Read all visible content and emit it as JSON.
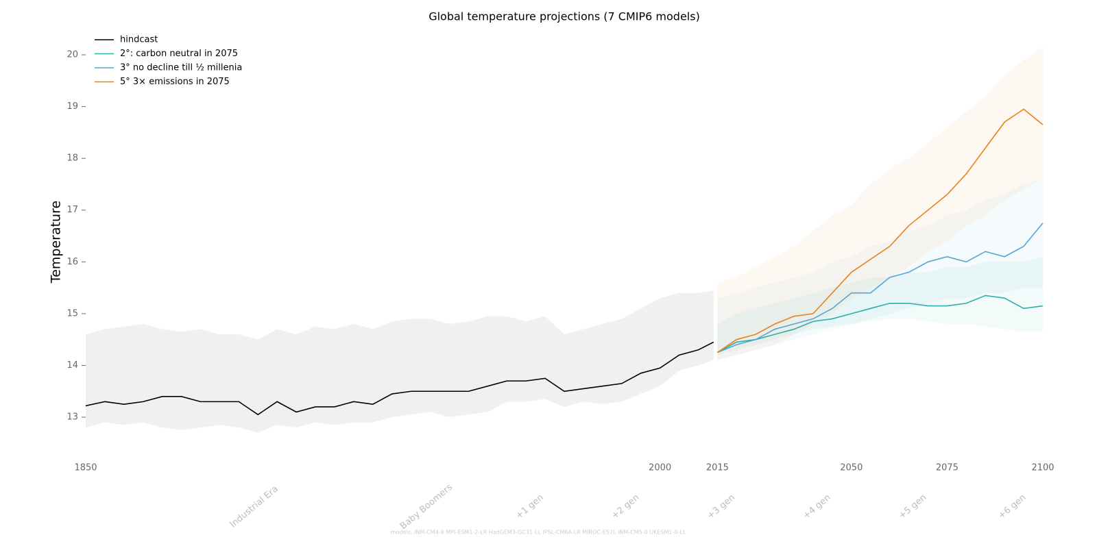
{
  "chart_data": {
    "type": "line",
    "title": "Global temperature projections (7 CMIP6 models)",
    "y_label": "Temperature",
    "footnote": "models: INM-CM4-8 MPI-ESM1-2-LR HadGEM3-GC31-LL IPSL-CM6A-LR MIROC-ES2L INM-CM5-0 UKESM1-0-LL",
    "xlim": [
      1850,
      2100
    ],
    "xticks": [
      1850,
      2000,
      2015,
      2050,
      2075,
      2100
    ],
    "ylim": [
      12.2,
      20.5
    ],
    "yticks": [
      13,
      14,
      15,
      16,
      17,
      18,
      19,
      20
    ],
    "legend": "upper-left",
    "annotations": [
      {
        "text": "Industrial Era",
        "x": 1894
      },
      {
        "text": "Baby Boomers",
        "x": 1939
      },
      {
        "text": "+1 gen",
        "x": 1966
      },
      {
        "text": "+2 gen",
        "x": 1991
      },
      {
        "text": "+3 gen",
        "x": 2016
      },
      {
        "text": "+4 gen",
        "x": 2041
      },
      {
        "text": "+5 gen",
        "x": 2066
      },
      {
        "text": "+6 gen",
        "x": 2092
      }
    ],
    "series": [
      {
        "name": "hindcast",
        "color": "#000000",
        "x": [
          1850,
          1855,
          1860,
          1865,
          1870,
          1875,
          1880,
          1885,
          1890,
          1895,
          1900,
          1905,
          1910,
          1915,
          1920,
          1925,
          1930,
          1935,
          1940,
          1945,
          1950,
          1955,
          1960,
          1965,
          1970,
          1975,
          1980,
          1985,
          1990,
          1995,
          2000,
          2005,
          2010,
          2014
        ],
        "values": [
          13.22,
          13.3,
          13.25,
          13.3,
          13.4,
          13.4,
          13.3,
          13.3,
          13.3,
          13.05,
          13.3,
          13.1,
          13.2,
          13.2,
          13.3,
          13.25,
          13.45,
          13.5,
          13.5,
          13.5,
          13.5,
          13.6,
          13.7,
          13.7,
          13.75,
          13.5,
          13.55,
          13.6,
          13.65,
          13.85,
          13.95,
          14.2,
          14.3,
          14.45
        ],
        "lower": [
          12.8,
          12.9,
          12.85,
          12.9,
          12.8,
          12.75,
          12.8,
          12.85,
          12.8,
          12.7,
          12.85,
          12.8,
          12.9,
          12.85,
          12.9,
          12.9,
          13.0,
          13.05,
          13.1,
          13.0,
          13.05,
          13.1,
          13.3,
          13.3,
          13.35,
          13.2,
          13.3,
          13.25,
          13.3,
          13.45,
          13.6,
          13.9,
          14.0,
          14.1
        ],
        "upper": [
          14.6,
          14.7,
          14.75,
          14.8,
          14.7,
          14.65,
          14.7,
          14.6,
          14.6,
          14.5,
          14.7,
          14.6,
          14.75,
          14.7,
          14.8,
          14.7,
          14.85,
          14.9,
          14.9,
          14.8,
          14.85,
          14.95,
          14.95,
          14.85,
          14.95,
          14.6,
          14.7,
          14.8,
          14.9,
          15.1,
          15.3,
          15.4,
          15.4,
          15.45
        ]
      },
      {
        "name": "2°: carbon neutral in 2075",
        "color": "#2ab0a8",
        "x": [
          2015,
          2020,
          2025,
          2030,
          2035,
          2040,
          2045,
          2050,
          2055,
          2060,
          2065,
          2070,
          2075,
          2080,
          2085,
          2090,
          2095,
          2100
        ],
        "values": [
          14.25,
          14.45,
          14.5,
          14.6,
          14.7,
          14.85,
          14.9,
          15.0,
          15.1,
          15.2,
          15.2,
          15.15,
          15.15,
          15.2,
          15.35,
          15.3,
          15.1,
          15.15
        ],
        "lower": [
          14.2,
          14.3,
          14.4,
          14.5,
          14.6,
          14.7,
          14.75,
          14.8,
          14.85,
          14.9,
          14.9,
          14.85,
          14.8,
          14.8,
          14.75,
          14.7,
          14.65,
          14.65
        ],
        "upper": [
          14.8,
          15.0,
          15.1,
          15.2,
          15.3,
          15.4,
          15.5,
          15.6,
          15.7,
          15.7,
          15.8,
          15.8,
          15.9,
          15.9,
          16.0,
          16.0,
          16.0,
          16.1
        ]
      },
      {
        "name": "3° no decline till ½ millenia",
        "color": "#5ba3cf",
        "x": [
          2015,
          2020,
          2025,
          2030,
          2035,
          2040,
          2045,
          2050,
          2055,
          2060,
          2065,
          2070,
          2075,
          2080,
          2085,
          2090,
          2095,
          2100
        ],
        "values": [
          14.25,
          14.4,
          14.5,
          14.7,
          14.8,
          14.9,
          15.1,
          15.4,
          15.4,
          15.7,
          15.8,
          16.0,
          16.1,
          16.0,
          16.2,
          16.1,
          16.3,
          16.75
        ],
        "lower": [
          14.1,
          14.2,
          14.3,
          14.4,
          14.5,
          14.6,
          14.7,
          14.8,
          14.9,
          15.0,
          15.1,
          15.2,
          15.3,
          15.3,
          15.4,
          15.4,
          15.5,
          15.5
        ],
        "upper": [
          15.3,
          15.4,
          15.5,
          15.6,
          15.7,
          15.8,
          16.0,
          16.1,
          16.3,
          16.4,
          16.6,
          16.7,
          16.9,
          17.0,
          17.2,
          17.3,
          17.5,
          17.6
        ]
      },
      {
        "name": "5° 3× emissions in 2075",
        "color": "#e8821a",
        "x": [
          2015,
          2020,
          2025,
          2030,
          2035,
          2040,
          2045,
          2050,
          2055,
          2060,
          2065,
          2070,
          2075,
          2080,
          2085,
          2090,
          2095,
          2100
        ],
        "values": [
          14.25,
          14.5,
          14.6,
          14.8,
          14.95,
          15.0,
          15.4,
          15.8,
          16.05,
          16.3,
          16.7,
          17.0,
          17.3,
          17.7,
          18.2,
          18.7,
          18.95,
          18.65
        ],
        "lower": [
          14.1,
          14.2,
          14.3,
          14.4,
          14.6,
          14.8,
          15.0,
          15.3,
          15.5,
          15.7,
          15.9,
          16.2,
          16.4,
          16.7,
          16.9,
          17.2,
          17.4,
          17.6
        ],
        "upper": [
          15.6,
          15.7,
          15.9,
          16.1,
          16.3,
          16.6,
          16.9,
          17.1,
          17.5,
          17.8,
          18.0,
          18.3,
          18.6,
          18.9,
          19.2,
          19.6,
          19.9,
          20.15
        ]
      }
    ]
  }
}
